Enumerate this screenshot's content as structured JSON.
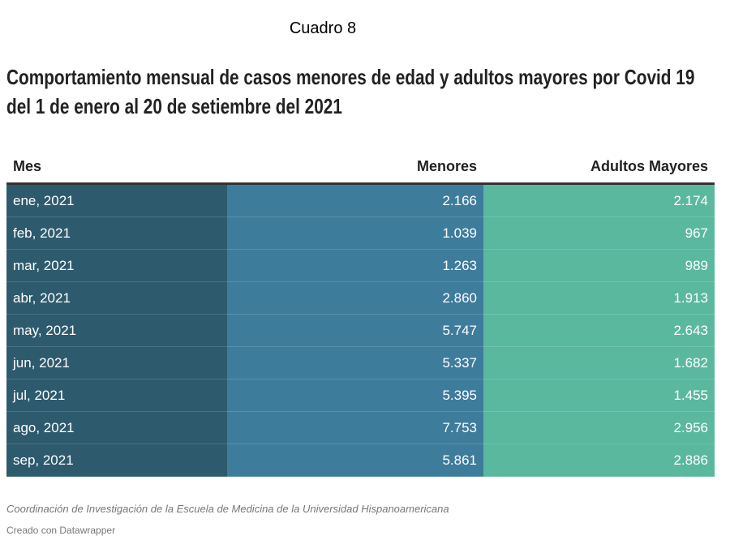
{
  "header": {
    "label": "Cuadro 8",
    "title_lines": [
      "Comportamiento mensual de casos menores de edad y adultos mayores por Covid 19",
      "del 1 de enero al 20 de setiembre del 2021"
    ]
  },
  "table": {
    "columns": [
      "Mes",
      "Menores",
      "Adultos Mayores"
    ],
    "rows": [
      [
        "ene, 2021",
        "2.166",
        "2.174"
      ],
      [
        "feb, 2021",
        "1.039",
        "967"
      ],
      [
        "mar, 2021",
        "1.263",
        "989"
      ],
      [
        "abr, 2021",
        "2.860",
        "1.913"
      ],
      [
        "may, 2021",
        "5.747",
        "2.643"
      ],
      [
        "jun, 2021",
        "5.337",
        "1.682"
      ],
      [
        "jul, 2021",
        "5.395",
        "1.455"
      ],
      [
        "ago, 2021",
        "7.753",
        "2.956"
      ],
      [
        "sep, 2021",
        "5.861",
        "2.886"
      ]
    ]
  },
  "footer": {
    "source": "Coordinación de Investigación de la Escuela de Medicina de la Universidad Hispanoamericana",
    "credit": "Creado con Datawrapper"
  }
}
